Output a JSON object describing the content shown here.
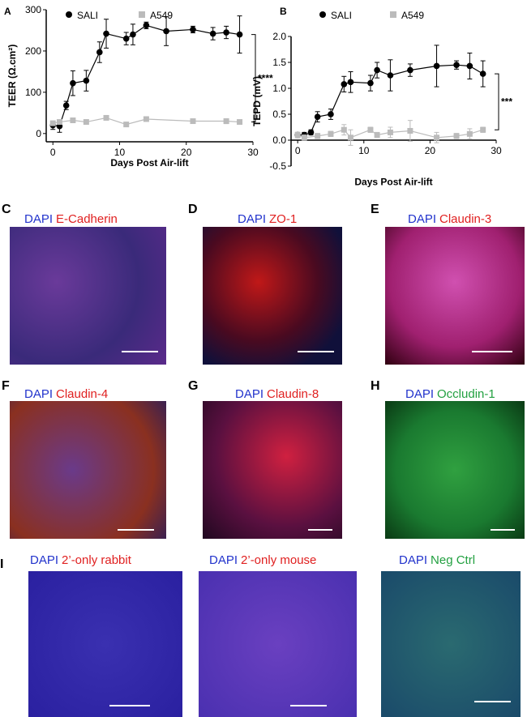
{
  "chart_data": [
    {
      "type": "line",
      "panel": "A",
      "ylabel": "TEER (Ω.cm²)",
      "xlabel": "Days Post Air-lift",
      "xlim": [
        -1,
        30
      ],
      "xticks": [
        0,
        10,
        20,
        30
      ],
      "ylim": [
        -20,
        300
      ],
      "yticks": [
        0,
        100,
        200,
        300
      ],
      "annotation": "****",
      "series": [
        {
          "name": "SALI",
          "color": "#000000",
          "marker": "circle",
          "x": [
            0,
            1,
            2,
            3,
            5,
            7,
            8,
            11,
            12,
            14,
            17,
            21,
            24,
            26,
            28
          ],
          "values": [
            20,
            18,
            68,
            122,
            128,
            197,
            242,
            230,
            240,
            262,
            248,
            252,
            242,
            245,
            240
          ],
          "errors": [
            10,
            15,
            10,
            30,
            25,
            25,
            35,
            15,
            25,
            8,
            35,
            8,
            15,
            15,
            45
          ]
        },
        {
          "name": "A549",
          "color": "#bbbbbb",
          "marker": "square",
          "x": [
            0,
            1,
            3,
            5,
            8,
            11,
            14,
            21,
            26,
            28
          ],
          "values": [
            25,
            28,
            32,
            28,
            38,
            22,
            35,
            30,
            30,
            28
          ],
          "errors": [
            4,
            4,
            4,
            4,
            4,
            4,
            4,
            4,
            6,
            4
          ]
        }
      ]
    },
    {
      "type": "line",
      "panel": "B",
      "ylabel": "TEPD (mV)",
      "xlabel": "Days Post Air-lift",
      "xlim": [
        -1,
        30
      ],
      "xticks": [
        0,
        10,
        20,
        30
      ],
      "ylim": [
        -0.5,
        2.0
      ],
      "yticks": [
        -0.5,
        {
          "value": 0,
          "label": "0.0"
        },
        0.5,
        {
          "value": 1,
          "label": "1.0"
        },
        1.5,
        {
          "value": 2,
          "label": "2.0"
        }
      ],
      "xaxis_crosses": 0,
      "annotation": "***",
      "series": [
        {
          "name": "SALI",
          "color": "#000000",
          "marker": "circle",
          "x": [
            0,
            1,
            2,
            3,
            5,
            7,
            8,
            11,
            12,
            14,
            17,
            21,
            24,
            26,
            28
          ],
          "values": [
            0.1,
            0.1,
            0.15,
            0.45,
            0.5,
            1.08,
            1.12,
            1.1,
            1.35,
            1.25,
            1.35,
            1.43,
            1.45,
            1.43,
            1.28
          ],
          "errors": [
            0.05,
            0.05,
            0.05,
            0.1,
            0.1,
            0.15,
            0.2,
            0.15,
            0.15,
            0.3,
            0.12,
            0.4,
            0.08,
            0.25,
            0.25
          ]
        },
        {
          "name": "A549",
          "color": "#bbbbbb",
          "marker": "square",
          "x": [
            0,
            1,
            3,
            5,
            7,
            8,
            11,
            12,
            14,
            17,
            21,
            24,
            26,
            28
          ],
          "values": [
            0.1,
            0.05,
            0.08,
            0.12,
            0.2,
            0.05,
            0.2,
            0.1,
            0.15,
            0.18,
            0.05,
            0.08,
            0.12,
            0.2
          ],
          "errors": [
            0.05,
            0.05,
            0.05,
            0.05,
            0.1,
            0.15,
            0.05,
            0.05,
            0.1,
            0.2,
            0.1,
            0.05,
            0.1,
            0.05
          ]
        }
      ]
    }
  ],
  "panels": [
    {
      "letter": "C",
      "stain": "DAPI",
      "marker": "E-Cadherin",
      "marker_color": "#e02020"
    },
    {
      "letter": "D",
      "stain": "DAPI",
      "marker": "ZO-1",
      "marker_color": "#e02020"
    },
    {
      "letter": "E",
      "stain": "DAPI",
      "marker": "Claudin-3",
      "marker_color": "#e02020"
    },
    {
      "letter": "F",
      "stain": "DAPI",
      "marker": "Claudin-4",
      "marker_color": "#e02020"
    },
    {
      "letter": "G",
      "stain": "DAPI",
      "marker": "Claudin-8",
      "marker_color": "#e02020"
    },
    {
      "letter": "H",
      "stain": "DAPI",
      "marker": "Occludin-1",
      "marker_color": "#22a040"
    },
    {
      "stain": "DAPI",
      "marker": "2’-only rabbit",
      "marker_color": "#e02020"
    },
    {
      "stain": "DAPI",
      "marker": "2’-only mouse",
      "marker_color": "#e02020"
    },
    {
      "stain": "DAPI",
      "marker": "Neg Ctrl",
      "marker_color": "#22a040"
    }
  ],
  "row_label": "I"
}
